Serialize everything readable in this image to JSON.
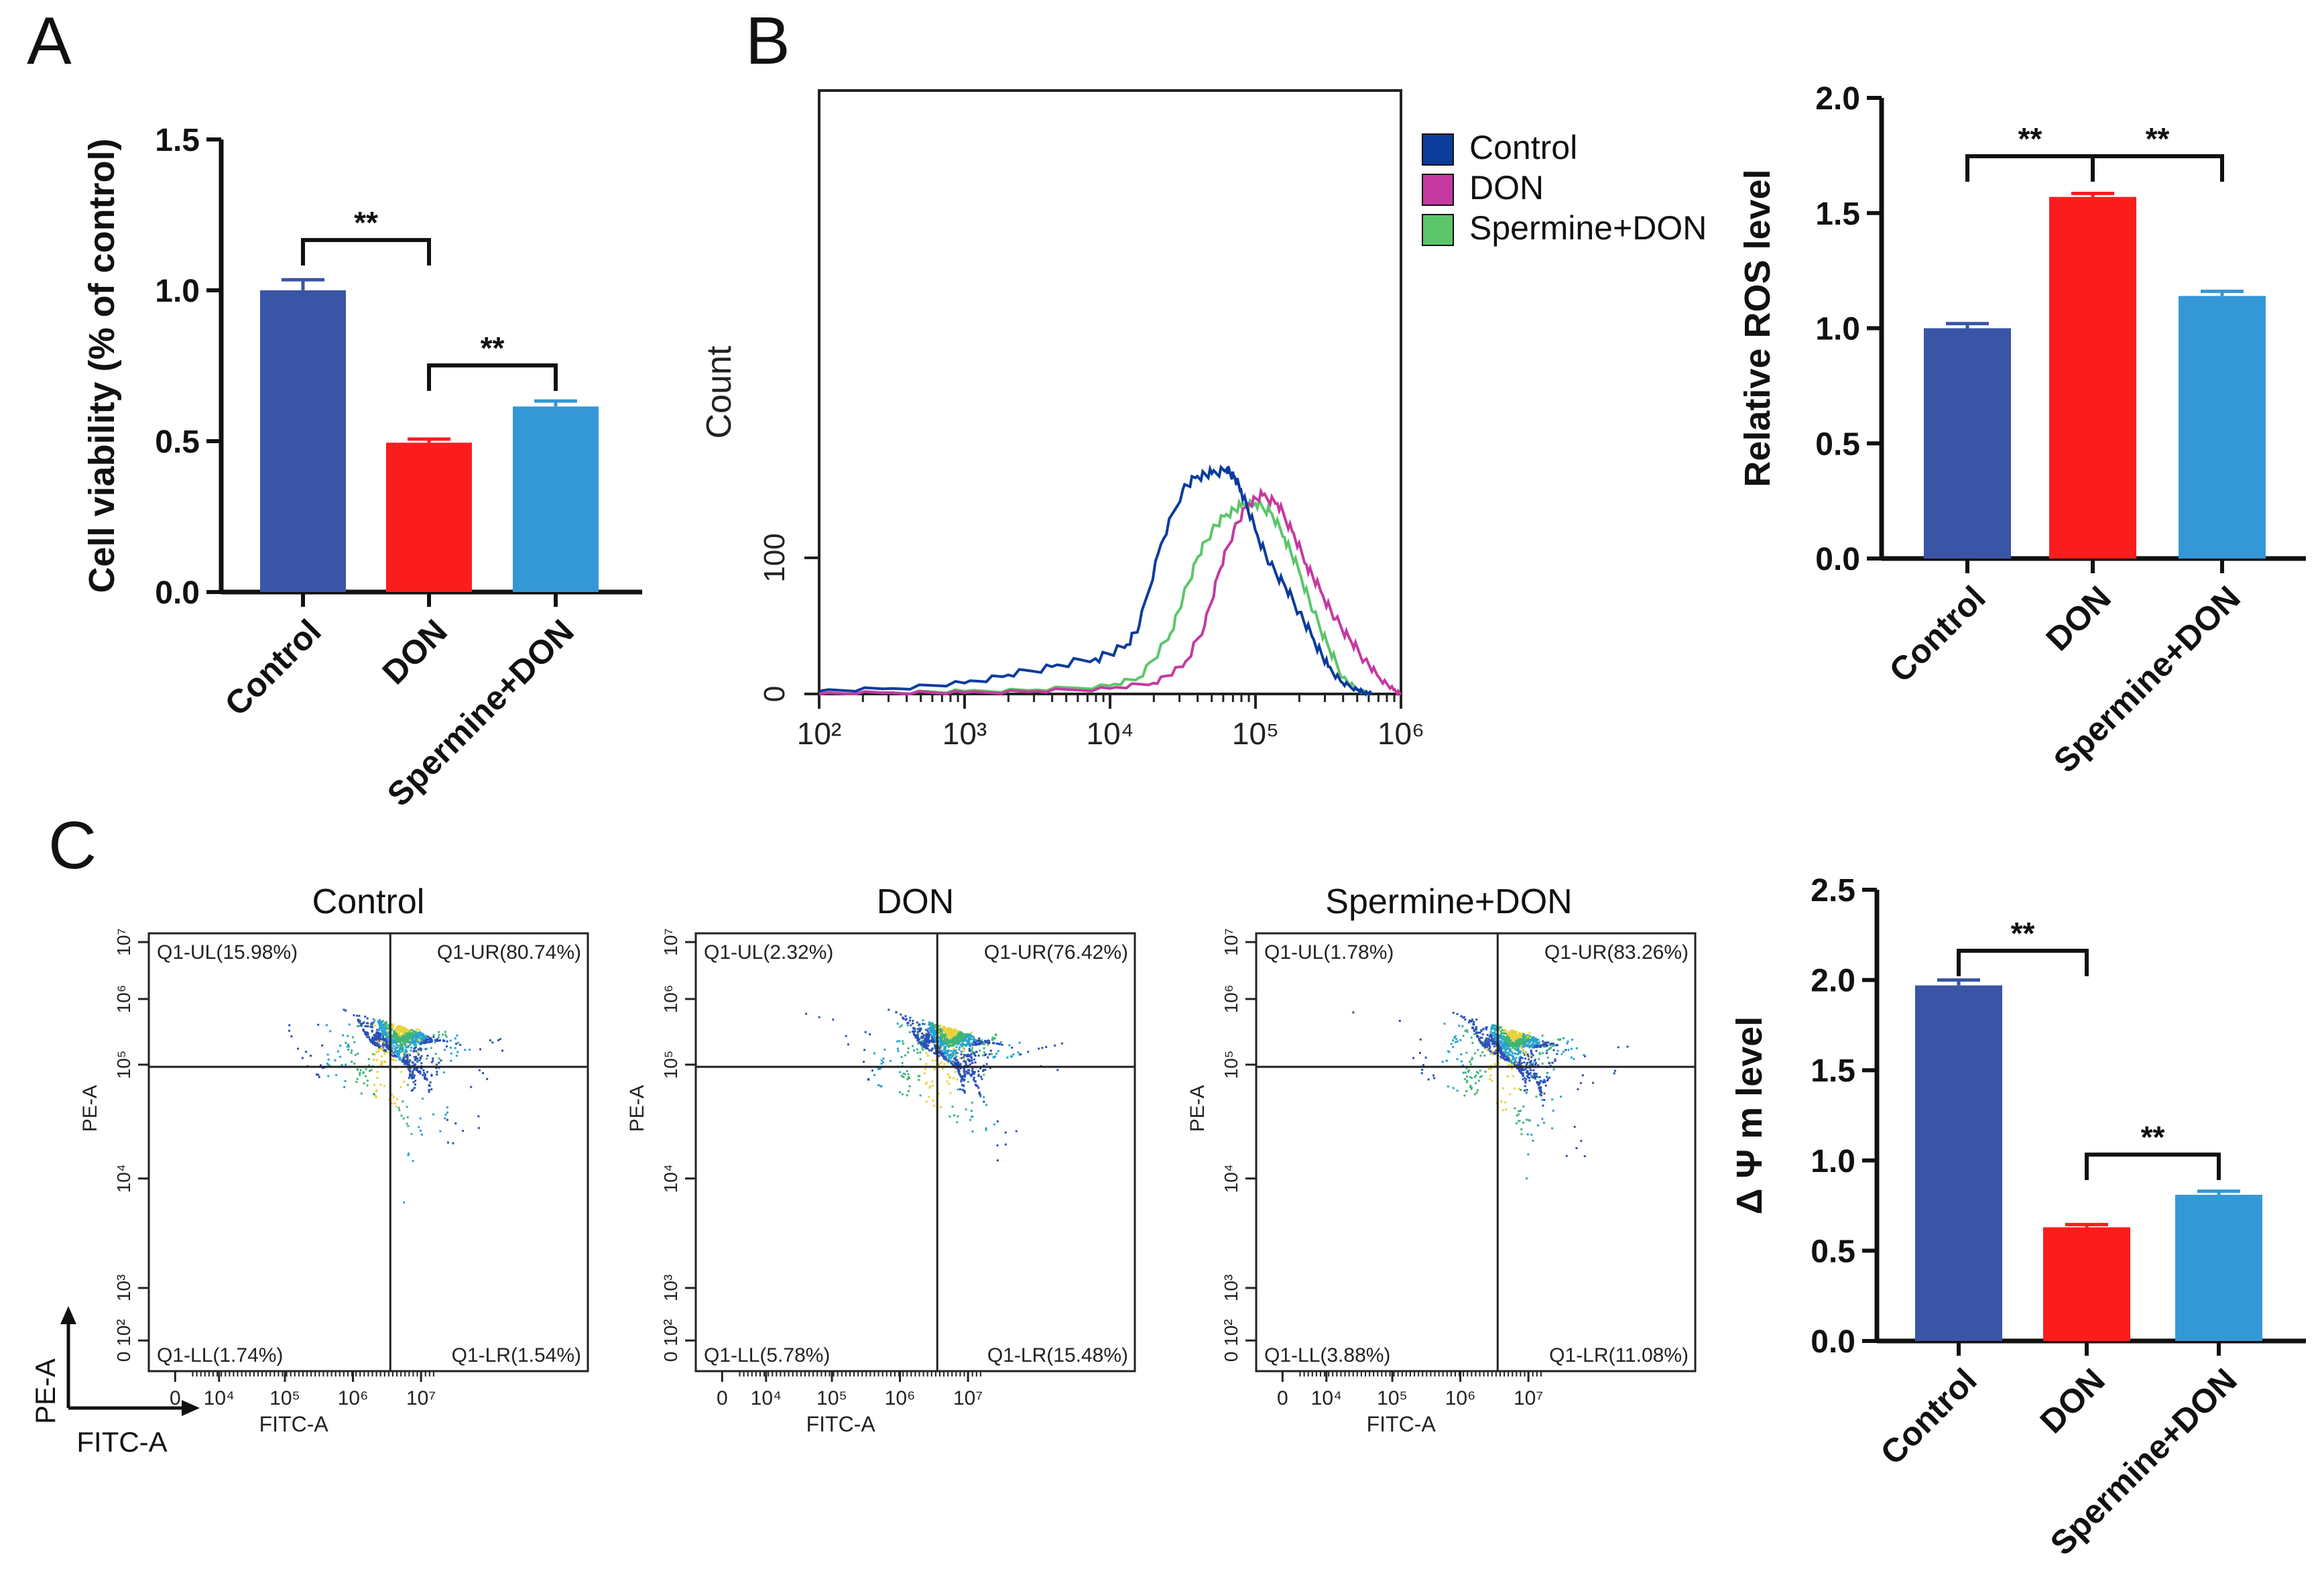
{
  "panel_labels": {
    "a": "A",
    "b": "B",
    "c": "C"
  },
  "colors": {
    "control": "#3a55a6",
    "don": "#fb1d1d",
    "spermine": "#3598d6",
    "hist_control": "#0b3c9c",
    "hist_don": "#c43aa0",
    "hist_spermine": "#5cc66a"
  },
  "chart_data": [
    {
      "id": "A",
      "type": "bar",
      "categories": [
        "Control",
        "DON",
        "Spermine+DON"
      ],
      "values": [
        1.0,
        0.495,
        0.615
      ],
      "errors": [
        0.035,
        0.012,
        0.018
      ],
      "ylabel": "Cell viability (% of control)",
      "ylim": [
        0,
        1.5
      ],
      "yticks": [
        "0.0",
        "0.5",
        "1.0",
        "1.5"
      ],
      "significance": [
        {
          "from": 0,
          "to": 1,
          "label": "**"
        },
        {
          "from": 1,
          "to": 2,
          "label": "**"
        }
      ]
    },
    {
      "id": "B-histogram",
      "type": "line",
      "xscale": "log",
      "xlim": [
        100,
        1000000
      ],
      "xticks": [
        "10²",
        "10³",
        "10⁴",
        "10⁵",
        "10⁶"
      ],
      "ylabel": "Count",
      "yticks": [
        "0",
        "100"
      ],
      "legend": [
        "Control",
        "DON",
        "Spermine+DON"
      ],
      "series": [
        {
          "name": "Control",
          "x_log10": [
            2.0,
            2.5,
            3.0,
            3.3,
            3.6,
            3.9,
            4.1,
            4.2,
            4.35,
            4.5,
            4.6,
            4.7,
            4.8,
            4.85,
            4.9,
            5.0,
            5.1,
            5.2,
            5.3,
            5.4,
            5.5,
            5.6,
            5.7,
            5.75,
            5.8
          ],
          "counts": [
            2,
            4,
            8,
            14,
            20,
            26,
            34,
            50,
            110,
            150,
            160,
            162,
            165,
            160,
            150,
            120,
            95,
            80,
            60,
            40,
            20,
            8,
            3,
            1,
            0
          ]
        },
        {
          "name": "DON",
          "x_log10": [
            2.0,
            2.5,
            3.0,
            3.5,
            4.0,
            4.3,
            4.5,
            4.65,
            4.75,
            4.85,
            4.95,
            5.05,
            5.15,
            5.25,
            5.35,
            5.45,
            5.55,
            5.65,
            5.75,
            5.85,
            5.95,
            6.0
          ],
          "counts": [
            0,
            1,
            1,
            2,
            4,
            8,
            20,
            50,
            90,
            120,
            140,
            146,
            140,
            120,
            95,
            75,
            55,
            40,
            25,
            12,
            3,
            0
          ]
        },
        {
          "name": "Spermine+DON",
          "x_log10": [
            2.0,
            2.5,
            3.0,
            3.5,
            4.0,
            4.2,
            4.4,
            4.5,
            4.6,
            4.7,
            4.8,
            4.9,
            5.0,
            5.1,
            5.2,
            5.3,
            5.4,
            5.5,
            5.6,
            5.7,
            5.8
          ],
          "counts": [
            0,
            1,
            2,
            3,
            6,
            12,
            40,
            70,
            100,
            120,
            132,
            138,
            140,
            134,
            115,
            90,
            60,
            35,
            12,
            3,
            0
          ]
        }
      ]
    },
    {
      "id": "B-bar",
      "type": "bar",
      "categories": [
        "Control",
        "DON",
        "Spermine+DON"
      ],
      "values": [
        1.0,
        1.57,
        1.14
      ],
      "errors": [
        0.02,
        0.015,
        0.02
      ],
      "ylabel": "Relative ROS level",
      "ylim": [
        0,
        2.0
      ],
      "yticks": [
        "0.0",
        "0.5",
        "1.0",
        "1.5",
        "2.0"
      ],
      "significance": [
        {
          "from": 0,
          "to": 1,
          "label": "**"
        },
        {
          "from": 1,
          "to": 2,
          "label": "**"
        }
      ]
    },
    {
      "id": "C-flow",
      "type": "scatter",
      "xlabel": "FITC-A",
      "ylabel": "PE-A",
      "xticks": [
        "0",
        "10⁴",
        "10⁵",
        "10⁶",
        "10⁷"
      ],
      "yticks": [
        "0 10²",
        "10³",
        "10⁴",
        "10⁵",
        "10⁶",
        "10⁷"
      ],
      "axis_hint": {
        "x": "FITC-A",
        "y": "PE-A"
      },
      "plots": [
        {
          "title": "Control",
          "ul": "Q1-UL(15.98%)",
          "ur": "Q1-UR(80.74%)",
          "ll": "Q1-LL(1.74%)",
          "lr": "Q1-LR(1.54%)"
        },
        {
          "title": "DON",
          "ul": "Q1-UL(2.32%)",
          "ur": "Q1-UR(76.42%)",
          "ll": "Q1-LL(5.78%)",
          "lr": "Q1-LR(15.48%)"
        },
        {
          "title": "Spermine+DON",
          "ul": "Q1-UL(1.78%)",
          "ur": "Q1-UR(83.26%)",
          "ll": "Q1-LL(3.88%)",
          "lr": "Q1-LR(11.08%)"
        }
      ]
    },
    {
      "id": "C-bar",
      "type": "bar",
      "categories": [
        "Control",
        "DON",
        "Spermine+DON"
      ],
      "values": [
        1.97,
        0.63,
        0.81
      ],
      "errors": [
        0.03,
        0.015,
        0.02
      ],
      "ylabel": "Δ Ψ m level",
      "ylim": [
        0,
        2.5
      ],
      "yticks": [
        "0.0",
        "0.5",
        "1.0",
        "1.5",
        "2.0",
        "2.5"
      ],
      "significance": [
        {
          "from": 0,
          "to": 1,
          "label": "**"
        },
        {
          "from": 1,
          "to": 2,
          "label": "**"
        }
      ]
    }
  ]
}
